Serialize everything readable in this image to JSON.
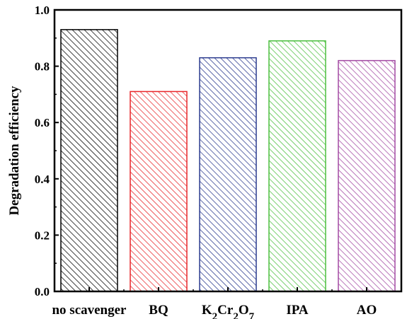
{
  "chart_data": {
    "type": "bar",
    "title": "",
    "xlabel": "",
    "ylabel": "Degradation efficiency",
    "ylim": [
      0.0,
      1.0
    ],
    "yticks": [
      "0.0",
      "0.2",
      "0.4",
      "0.6",
      "0.8",
      "1.0"
    ],
    "categories": [
      {
        "key": "no-scavenger",
        "parts": [
          {
            "t": "no scavenger"
          }
        ]
      },
      {
        "key": "bq",
        "parts": [
          {
            "t": "BQ"
          }
        ]
      },
      {
        "key": "k2cr2o7",
        "parts": [
          {
            "t": "K"
          },
          {
            "t": "2",
            "sub": true
          },
          {
            "t": "Cr"
          },
          {
            "t": "2",
            "sub": true
          },
          {
            "t": "O"
          },
          {
            "t": "7",
            "sub": true
          }
        ]
      },
      {
        "key": "ipa",
        "parts": [
          {
            "t": "IPA"
          }
        ]
      },
      {
        "key": "ao",
        "parts": [
          {
            "t": "AO"
          }
        ]
      }
    ],
    "values": [
      0.93,
      0.71,
      0.83,
      0.89,
      0.82
    ],
    "colors": [
      "#000000",
      "#e8262a",
      "#2b3b8f",
      "#4cbf3f",
      "#a34aa3"
    ],
    "pattern": "diagonal-hatch",
    "grid": false
  }
}
